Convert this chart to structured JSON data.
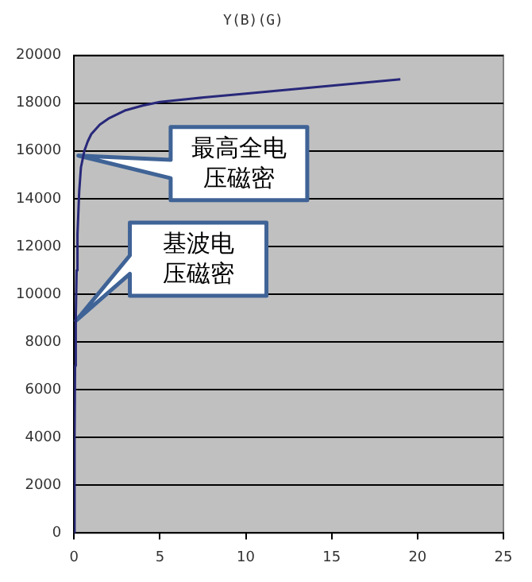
{
  "chart_data": {
    "type": "line",
    "title": "Y(B)(G)",
    "x": [
      0,
      0.03,
      0.06,
      0.1,
      0.15,
      0.2,
      0.3,
      0.4,
      0.6,
      0.8,
      1,
      1.5,
      2,
      3,
      4,
      5,
      7,
      10,
      13,
      16,
      19
    ],
    "series": [
      {
        "color": "#28287a",
        "values": [
          0,
          4000,
          7000,
          9000,
          11000,
          12500,
          14300,
          15300,
          16000,
          16400,
          16700,
          17100,
          17350,
          17700,
          17900,
          18050,
          18200,
          18400,
          18600,
          18800,
          19000
        ]
      }
    ],
    "xlim": [
      0,
      25
    ],
    "xticks": [
      0,
      5,
      10,
      15,
      20,
      25
    ],
    "ylim": [
      0,
      20000
    ],
    "yticks": [
      0,
      2000,
      4000,
      6000,
      8000,
      10000,
      12000,
      14000,
      16000,
      18000,
      20000
    ],
    "grid": "y",
    "legend": false,
    "marker": "none",
    "line_style": "solid",
    "annotations": [
      "最高全电压磁密",
      "基波电压磁密"
    ]
  }
}
